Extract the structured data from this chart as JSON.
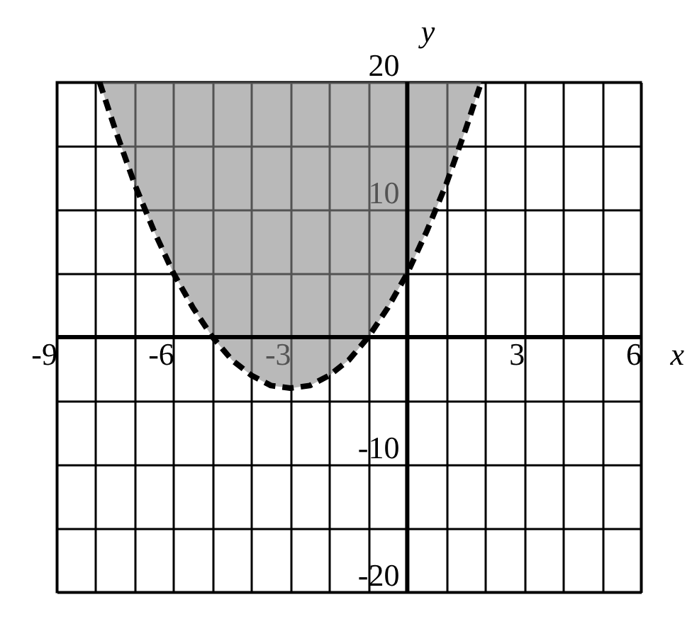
{
  "chart_data": {
    "type": "line",
    "xlabel": "x",
    "ylabel": "y",
    "xlim": [
      -9,
      6
    ],
    "ylim": [
      -20,
      20
    ],
    "xticks": [
      -9,
      {
        "value": -8,
        "label": null
      },
      {
        "value": -7,
        "label": null
      },
      -6,
      {
        "value": -5,
        "label": null
      },
      {
        "value": -4,
        "label": null
      },
      -3,
      {
        "value": -2,
        "label": null
      },
      {
        "value": -1,
        "label": null
      },
      {
        "value": 0,
        "label": null
      },
      {
        "value": 1,
        "label": null
      },
      {
        "value": 2,
        "label": null
      },
      3,
      {
        "value": 4,
        "label": null
      },
      {
        "value": 5,
        "label": null
      },
      6
    ],
    "yticks": [
      -20,
      {
        "value": -15,
        "label": null
      },
      -10,
      {
        "value": -5,
        "label": null
      },
      {
        "value": 0,
        "label": null
      },
      {
        "value": 5,
        "label": null
      },
      10,
      {
        "value": 15,
        "label": null
      },
      20
    ],
    "grid": true,
    "line_style": "dashed",
    "series": [
      {
        "color": "#000000",
        "x": [
          -7.9,
          -7.5,
          -7,
          -6.5,
          -6,
          -5.5,
          -5,
          -4.5,
          -4,
          -3.5,
          -3,
          -2.5,
          -2,
          -1.5,
          -1,
          -0.5,
          0,
          0.5,
          1,
          1.5,
          1.9
        ],
        "values": [
          20,
          16.3,
          12,
          8.3,
          5,
          2.3,
          0,
          -1.8,
          -3,
          -3.8,
          -4,
          -3.8,
          -3,
          -1.8,
          0,
          2.3,
          5,
          8.3,
          12,
          16.3,
          20
        ],
        "lower": [
          20,
          16.3,
          12,
          8.3,
          5,
          2.3,
          0,
          -1.8,
          -3,
          -3.8,
          -4,
          -3.8,
          -3,
          -1.8,
          0,
          2.3,
          5,
          8.3,
          12,
          16.3,
          20
        ],
        "upper": [
          20,
          20,
          20,
          20,
          20,
          20,
          20,
          20,
          20,
          20,
          20,
          20,
          20,
          20,
          20,
          20,
          20,
          20,
          20,
          20,
          20
        ]
      }
    ]
  }
}
